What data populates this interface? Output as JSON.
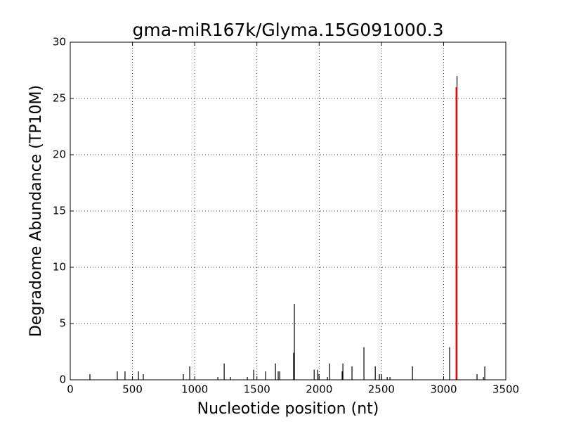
{
  "chart_data": {
    "type": "stem",
    "title": "gma-miR167k/Glyma.15G091000.3",
    "x_label": "Nucleotide position (nt)",
    "y_label": "Degradome Abundance (TP10M)",
    "xlim": [
      0,
      3500
    ],
    "xticks": [
      0,
      500,
      1000,
      1500,
      2000,
      2500,
      3000,
      3500
    ],
    "ylim": [
      0,
      30
    ],
    "yticks": [
      0,
      5,
      10,
      15,
      20,
      25,
      30
    ],
    "grid": true,
    "series": [
      {
        "color": "#000000",
        "x": [
          158,
          378,
          440,
          548,
          587,
          909,
          960,
          1186,
          1237,
          1287,
          1423,
          1474,
          1570,
          1649,
          1671,
          1683,
          1795,
          1801,
          1960,
          1988,
          1999,
          2067,
          2084,
          2185,
          2191,
          2264,
          2360,
          2451,
          2484,
          2501,
          2547,
          2569,
          2750,
          3049,
          3108,
          3269,
          3320,
          3331
        ],
        "values": [
          0.5,
          0.75,
          0.75,
          0.75,
          0.5,
          0.5,
          1.2,
          0.25,
          1.45,
          0.25,
          0.25,
          0.9,
          0.75,
          1.45,
          0.75,
          0.75,
          2.4,
          6.75,
          0.9,
          0.9,
          0.5,
          0.25,
          1.45,
          0.75,
          1.45,
          1.2,
          2.9,
          1.2,
          0.5,
          0.5,
          0.25,
          0.25,
          1.2,
          2.9,
          27,
          0.5,
          0.25,
          1.2
        ]
      },
      {
        "color": "#ff0000",
        "x": [
          3103
        ],
        "values": [
          26
        ]
      }
    ]
  }
}
